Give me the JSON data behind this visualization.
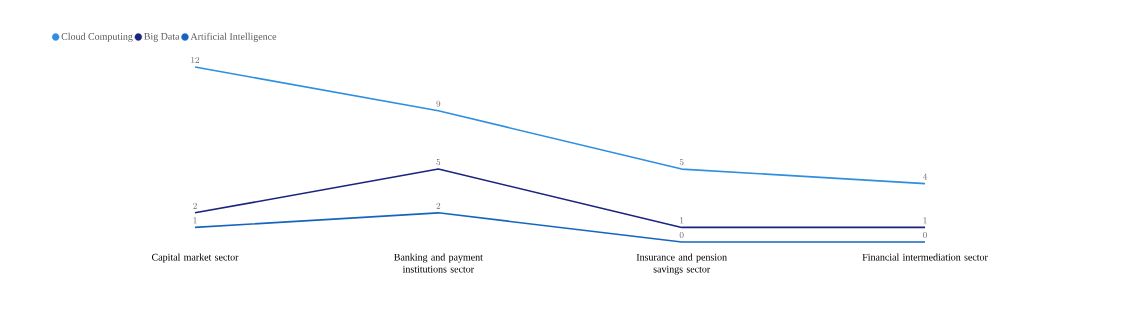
{
  "chart_data": {
    "type": "line",
    "categories": [
      "Capital market sector",
      "Banking and payment institutions sector",
      "Insurance and pension savings sector",
      "Financial intermediation sector"
    ],
    "series": [
      {
        "name": "Cloud Computing",
        "color": "#2e8ee0",
        "values": [
          12,
          9,
          5,
          4
        ]
      },
      {
        "name": "Big Data",
        "color": "#1a237e",
        "values": [
          2,
          5,
          1,
          1
        ]
      },
      {
        "name": "Artificial Intelligence",
        "color": "#1565c0",
        "values": [
          1,
          2,
          0,
          0
        ]
      }
    ],
    "data_labels": true,
    "legend": "top left",
    "grid": false,
    "marker": "none",
    "line_style": "solid"
  }
}
